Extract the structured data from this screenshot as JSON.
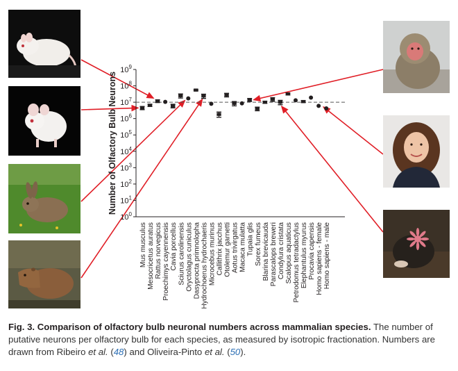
{
  "chart_data": {
    "type": "scatter",
    "ylabel": "Number of Olfactory Bulb Neurons",
    "xlabel": "",
    "y_scale": "log",
    "ylim": [
      1,
      1000000000
    ],
    "y_ticks": [
      {
        "value": 1,
        "base": "10",
        "exp": "0"
      },
      {
        "value": 10,
        "base": "10",
        "exp": "1"
      },
      {
        "value": 100,
        "base": "10",
        "exp": "2"
      },
      {
        "value": 1000,
        "base": "10",
        "exp": "3"
      },
      {
        "value": 10000,
        "base": "10",
        "exp": "4"
      },
      {
        "value": 100000,
        "base": "10",
        "exp": "5"
      },
      {
        "value": 1000000,
        "base": "10",
        "exp": "6"
      },
      {
        "value": 10000000,
        "base": "10",
        "exp": "7"
      },
      {
        "value": 100000000,
        "base": "10",
        "exp": "8"
      },
      {
        "value": 1000000000,
        "base": "10",
        "exp": "9"
      }
    ],
    "reference_line": 10000000,
    "categories": [
      "Mus musculus",
      "Mesocricetus auratus",
      "Rattus norvegicus",
      "Proechimys cayennensis",
      "Cavia porcellus",
      "Sciurus carolinensis",
      "Oryctolagus cuniculus",
      "Dasyprocta primnolopha",
      "Hydrochoerus hydrochaeris",
      "Microcebus murinus",
      "Callithrix jacchus",
      "Otolemur garnetti",
      "Aotus trivirgatus",
      "Macaca mulatta",
      "Tupaia glis",
      "Sorex fumeus",
      "Blarina brevicauda",
      "Parascalops breweri",
      "Condylura cristata",
      "Scalopus aquaticus",
      "Petrodomus tetradactylus",
      "Elephantulus myurus",
      "Procavia capensis",
      "Homo sapiens - female",
      "Homo sapiens - male"
    ],
    "values": [
      4500000,
      6500000,
      12000000,
      10500000,
      6000000,
      25000000,
      17000000,
      55000000,
      24000000,
      8000000,
      1800000,
      28000000,
      8500000,
      8500000,
      14000000,
      4000000,
      10000000,
      15000000,
      10000000,
      32000000,
      13000000,
      11000000,
      19000000,
      6000000,
      4200000
    ],
    "error_low": [
      3500000,
      5500000,
      9500000,
      9000000,
      4500000,
      18000000,
      15000000,
      50000000,
      17000000,
      7000000,
      1200000,
      21000000,
      6000000,
      8000000,
      11000000,
      3000000,
      8500000,
      11000000,
      7000000,
      28000000,
      11000000,
      9500000,
      18000000,
      5500000,
      4000000
    ],
    "error_high": [
      5500000,
      7500000,
      14000000,
      12000000,
      7500000,
      32000000,
      19000000,
      60000000,
      31000000,
      9000000,
      2500000,
      35000000,
      11000000,
      9000000,
      17000000,
      5000000,
      11500000,
      19000000,
      13000000,
      36000000,
      15000000,
      12500000,
      20000000,
      6500000,
      4500000
    ],
    "has_error_bar": [
      true,
      true,
      true,
      false,
      true,
      true,
      false,
      true,
      true,
      false,
      true,
      true,
      true,
      false,
      true,
      true,
      true,
      true,
      true,
      true,
      false,
      true,
      false,
      false,
      false
    ],
    "grid": false,
    "legend": "none"
  },
  "caption": {
    "figure_label": "Fig. 3.",
    "title": "Comparison of olfactory bulb neuronal numbers across mammalian species.",
    "body_1": "The number of putative neurons per olfactory bulb for each species, as measured by isotropic fractionation. Numbers are drawn from Ribeiro ",
    "et_al": "et al.",
    "ref_48": "48",
    "mid": ") and Oliveira-Pinto ",
    "ref_50": "50",
    "end": ")."
  },
  "photos": [
    {
      "name": "rat-photo",
      "subject": "white rat"
    },
    {
      "name": "mouse-photo",
      "subject": "white mouse"
    },
    {
      "name": "rabbit-photo",
      "subject": "wild rabbit"
    },
    {
      "name": "capybara-photo",
      "subject": "capybara"
    },
    {
      "name": "macaque-photo",
      "subject": "macaque"
    },
    {
      "name": "woman-photo",
      "subject": "woman portrait"
    },
    {
      "name": "star-nosed-mole-photo",
      "subject": "star-nosed mole"
    }
  ],
  "colors": {
    "arrow": "#e01e26",
    "marker": "#231f20",
    "dashed_line": "#555555",
    "ref_link": "#2c6fb5"
  }
}
